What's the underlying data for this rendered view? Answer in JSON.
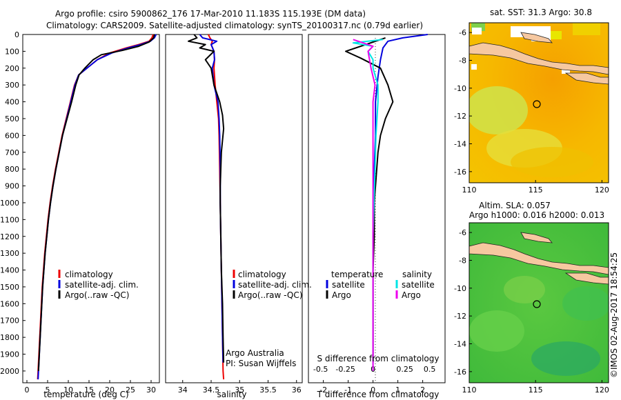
{
  "title": {
    "line1": "Argo profile: csiro 5900862_176 17-Mar-2010 11.183S 115.193E (DM data)",
    "line2": "Climatology: CARS2009. Satellite-adjusted climatology: synTS_20100317.nc (0.79d earlier)"
  },
  "colors": {
    "climatology": "#ee0000",
    "satellite": "#0000dd",
    "argo": "#000000",
    "salinity_sat": "#00e5e5",
    "salinity_argo": "#ee00ee"
  },
  "depth_ticks": [
    0,
    100,
    200,
    300,
    400,
    500,
    600,
    700,
    800,
    900,
    1000,
    1100,
    1200,
    1300,
    1400,
    1500,
    1600,
    1700,
    1800,
    1900,
    2000
  ],
  "chart_data": [
    {
      "type": "line",
      "name": "temperature-profile",
      "xlabel": "temperature (deg C)",
      "ylabel": "depth",
      "xlim": [
        -1,
        32
      ],
      "ylim": [
        2070,
        0
      ],
      "xticks": [
        0,
        5,
        10,
        15,
        20,
        25,
        30
      ],
      "legend": [
        "climatology",
        "satellite-adj. clim.",
        "Argo(..raw -QC)"
      ],
      "series": [
        {
          "name": "climatology",
          "points": [
            [
              30.5,
              0
            ],
            [
              30.2,
              20
            ],
            [
              29.5,
              40
            ],
            [
              27,
              60
            ],
            [
              24,
              80
            ],
            [
              20,
              110
            ],
            [
              17,
              150
            ],
            [
              14.5,
              200
            ],
            [
              12.5,
              240
            ],
            [
              11.5,
              300
            ],
            [
              10.5,
              400
            ],
            [
              9.5,
              500
            ],
            [
              8.5,
              600
            ],
            [
              7.7,
              700
            ],
            [
              6.9,
              800
            ],
            [
              6.2,
              900
            ],
            [
              5.6,
              1000
            ],
            [
              5.1,
              1100
            ],
            [
              4.7,
              1200
            ],
            [
              4.3,
              1300
            ],
            [
              4.0,
              1400
            ],
            [
              3.7,
              1500
            ],
            [
              3.5,
              1600
            ],
            [
              3.3,
              1700
            ],
            [
              3.1,
              1800
            ],
            [
              2.9,
              1900
            ],
            [
              2.7,
              2000
            ],
            [
              2.6,
              2050
            ]
          ]
        },
        {
          "name": "satellite-adj. clim.",
          "points": [
            [
              31.2,
              0
            ],
            [
              30.8,
              20
            ],
            [
              29.8,
              40
            ],
            [
              27.5,
              60
            ],
            [
              24.5,
              80
            ],
            [
              20.5,
              110
            ],
            [
              17,
              150
            ],
            [
              14.5,
              200
            ],
            [
              12.5,
              240
            ],
            [
              11.6,
              300
            ],
            [
              10.6,
              400
            ],
            [
              9.6,
              500
            ],
            [
              8.6,
              600
            ],
            [
              7.8,
              700
            ],
            [
              7.0,
              800
            ],
            [
              6.3,
              900
            ],
            [
              5.7,
              1000
            ],
            [
              5.2,
              1100
            ],
            [
              4.8,
              1200
            ],
            [
              4.4,
              1300
            ],
            [
              4.1,
              1400
            ],
            [
              3.8,
              1500
            ],
            [
              3.6,
              1600
            ],
            [
              3.4,
              1700
            ],
            [
              3.2,
              1800
            ],
            [
              3.0,
              1900
            ],
            [
              2.8,
              2000
            ],
            [
              2.7,
              2050
            ]
          ]
        },
        {
          "name": "Argo(..raw -QC)",
          "points": [
            [
              30.8,
              0
            ],
            [
              30.6,
              20
            ],
            [
              29.5,
              45
            ],
            [
              27,
              70
            ],
            [
              23,
              95
            ],
            [
              18,
              120
            ],
            [
              16,
              150
            ],
            [
              14,
              200
            ],
            [
              12.6,
              240
            ],
            [
              11.8,
              300
            ],
            [
              10.8,
              400
            ],
            [
              9.7,
              500
            ],
            [
              8.6,
              600
            ],
            [
              7.8,
              700
            ],
            [
              7.0,
              800
            ],
            [
              6.3,
              900
            ],
            [
              5.7,
              1000
            ],
            [
              5.2,
              1100
            ],
            [
              4.8,
              1200
            ],
            [
              4.4,
              1300
            ],
            [
              4.1,
              1400
            ],
            [
              3.8,
              1500
            ],
            [
              3.6,
              1600
            ],
            [
              3.4,
              1700
            ],
            [
              3.2,
              1800
            ],
            [
              3.0,
              1900
            ],
            [
              2.8,
              2000
            ]
          ]
        }
      ]
    },
    {
      "type": "line",
      "name": "salinity-profile",
      "xlabel": "salinity",
      "ylabel": "depth",
      "xlim": [
        33.7,
        36.1
      ],
      "ylim": [
        2070,
        0
      ],
      "xticks": [
        34,
        34.5,
        35,
        35.5,
        36
      ],
      "legend": [
        "climatology",
        "satellite-adj. clim.",
        "Argo(..raw -QC)"
      ],
      "annotation": [
        "Argo Australia",
        "PI: Susan Wijffels"
      ],
      "series": [
        {
          "name": "climatology",
          "points": [
            [
              34.45,
              0
            ],
            [
              34.48,
              20
            ],
            [
              34.52,
              40
            ],
            [
              34.5,
              60
            ],
            [
              34.55,
              100
            ],
            [
              34.56,
              150
            ],
            [
              34.55,
              200
            ],
            [
              34.57,
              300
            ],
            [
              34.6,
              400
            ],
            [
              34.63,
              500
            ],
            [
              34.64,
              600
            ],
            [
              34.65,
              800
            ],
            [
              34.66,
              1000
            ],
            [
              34.67,
              1200
            ],
            [
              34.68,
              1400
            ],
            [
              34.69,
              1600
            ],
            [
              34.7,
              1800
            ],
            [
              34.71,
              2000
            ],
            [
              34.72,
              2050
            ]
          ]
        },
        {
          "name": "satellite-adj. clim.",
          "points": [
            [
              34.3,
              0
            ],
            [
              34.35,
              20
            ],
            [
              34.6,
              40
            ],
            [
              34.5,
              60
            ],
            [
              34.55,
              100
            ],
            [
              34.56,
              150
            ],
            [
              34.52,
              200
            ],
            [
              34.55,
              300
            ],
            [
              34.62,
              400
            ],
            [
              34.64,
              500
            ],
            [
              34.65,
              600
            ],
            [
              34.66,
              800
            ],
            [
              34.66,
              1000
            ],
            [
              34.67,
              1200
            ],
            [
              34.68,
              1400
            ],
            [
              34.69,
              1600
            ],
            [
              34.7,
              1800
            ],
            [
              34.71,
              1950
            ]
          ]
        },
        {
          "name": "Argo(..raw -QC)",
          "points": [
            [
              34.2,
              0
            ],
            [
              34.25,
              20
            ],
            [
              34.1,
              40
            ],
            [
              34.4,
              60
            ],
            [
              34.3,
              80
            ],
            [
              34.55,
              100
            ],
            [
              34.4,
              150
            ],
            [
              34.5,
              200
            ],
            [
              34.55,
              300
            ],
            [
              34.65,
              400
            ],
            [
              34.7,
              480
            ],
            [
              34.72,
              560
            ],
            [
              34.68,
              700
            ],
            [
              34.66,
              900
            ],
            [
              34.66,
              1000
            ],
            [
              34.67,
              1200
            ],
            [
              34.68,
              1400
            ],
            [
              34.7,
              1600
            ],
            [
              34.71,
              1800
            ],
            [
              34.72,
              1950
            ]
          ]
        }
      ]
    },
    {
      "type": "line",
      "name": "difference-profile",
      "xlabel": "T difference from climatology",
      "xlabel_top": "S difference from climatology",
      "xlim": [
        -2.6,
        2.9
      ],
      "ylim": [
        2070,
        0
      ],
      "xticks": [
        -2,
        -1,
        0,
        1,
        2
      ],
      "sticks_labels": [
        "-0.5",
        "-0.25",
        "0",
        "0.25",
        "0.5"
      ],
      "legend_temperature": [
        "satellite",
        "Argo"
      ],
      "legend_salinity": [
        "satellite",
        "Argo"
      ],
      "series": [
        {
          "name": "temperature satellite",
          "points": [
            [
              2.2,
              0
            ],
            [
              1.2,
              20
            ],
            [
              0.6,
              40
            ],
            [
              0.4,
              80
            ],
            [
              0.3,
              150
            ],
            [
              0.2,
              250
            ],
            [
              0.1,
              400
            ],
            [
              0.1,
              600
            ],
            [
              0.05,
              800
            ],
            [
              0.05,
              1000
            ],
            [
              0,
              1200
            ],
            [
              0,
              1500
            ],
            [
              0,
              1800
            ],
            [
              0,
              1950
            ]
          ]
        },
        {
          "name": "temperature Argo",
          "points": [
            [
              0.5,
              20
            ],
            [
              0,
              45
            ],
            [
              -1.1,
              100
            ],
            [
              -0.5,
              140
            ],
            [
              0.3,
              200
            ],
            [
              0.6,
              300
            ],
            [
              0.8,
              400
            ],
            [
              0.5,
              500
            ],
            [
              0.3,
              600
            ],
            [
              0.2,
              700
            ],
            [
              0.15,
              800
            ],
            [
              0.1,
              900
            ],
            [
              0.05,
              1000
            ],
            [
              0.05,
              1200
            ],
            [
              0,
              1400
            ],
            [
              0,
              1600
            ],
            [
              0,
              1800
            ],
            [
              0,
              1950
            ]
          ]
        },
        {
          "name": "salinity satellite",
          "points": [
            [
              0.1,
              30
            ],
            [
              -0.2,
              50
            ],
            [
              0,
              70
            ],
            [
              -0.05,
              100
            ],
            [
              0,
              150
            ],
            [
              0,
              200
            ],
            [
              0.05,
              300
            ],
            [
              0.05,
              400
            ],
            [
              0.03,
              600
            ],
            [
              0.02,
              800
            ],
            [
              0.01,
              1000
            ],
            [
              0,
              1200
            ],
            [
              0,
              1500
            ],
            [
              0,
              1800
            ],
            [
              0,
              2000
            ]
          ]
        },
        {
          "name": "salinity Argo",
          "points": [
            [
              -0.2,
              30
            ],
            [
              -0.1,
              50
            ],
            [
              0,
              70
            ],
            [
              -0.05,
              100
            ],
            [
              -0.02,
              200
            ],
            [
              0,
              250
            ],
            [
              0.02,
              300
            ],
            [
              0,
              400
            ],
            [
              0,
              600
            ],
            [
              0,
              800
            ],
            [
              0,
              1000
            ],
            [
              0,
              1200
            ],
            [
              0,
              1500
            ],
            [
              0,
              1800
            ],
            [
              0,
              2000
            ]
          ]
        }
      ]
    },
    {
      "type": "heatmap",
      "name": "sst-map",
      "title": "sat. SST: 31.3 Argo: 30.8",
      "xlim": [
        110,
        120.5
      ],
      "ylim": [
        -16.8,
        -5.3
      ],
      "xticks": [
        110,
        115,
        120
      ],
      "yticks": [
        -6,
        -8,
        -10,
        -12,
        -14,
        -16
      ],
      "marker": {
        "lon": 115.193,
        "lat": -11.183
      }
    },
    {
      "type": "heatmap",
      "name": "sla-map",
      "title_lines": [
        "Altim. SLA: 0.057",
        "Argo h1000: 0.016 h2000: 0.013"
      ],
      "xlim": [
        110,
        120.5
      ],
      "ylim": [
        -16.8,
        -5.3
      ],
      "xticks": [
        110,
        115,
        120
      ],
      "yticks": [
        -6,
        -8,
        -10,
        -12,
        -14,
        -16
      ],
      "marker": {
        "lon": 115.193,
        "lat": -11.183
      }
    }
  ],
  "footer": {
    "credit": "©IMOS 02-Aug-2017 18:54:25"
  }
}
